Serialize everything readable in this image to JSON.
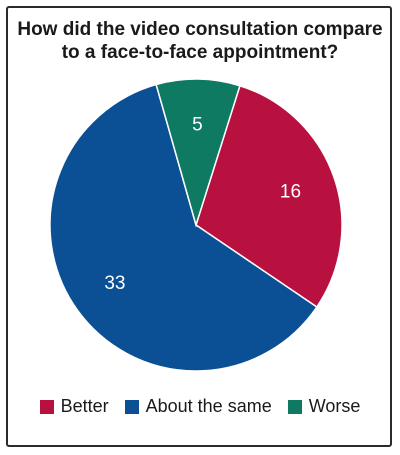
{
  "chart_data": {
    "type": "pie",
    "title_lines": [
      "How did the video consultation compare",
      "to a face-to-face appointment?"
    ],
    "categories": [
      "Better",
      "About the same",
      "Worse"
    ],
    "values": [
      16,
      33,
      5
    ],
    "colors": [
      "#b8103f",
      "#0b4f94",
      "#0f7a62"
    ],
    "data_labels": [
      "16",
      "33",
      "5"
    ],
    "legend_position": "bottom",
    "slice_edge_color": "#ffffff",
    "label_color": "#ffffff"
  }
}
